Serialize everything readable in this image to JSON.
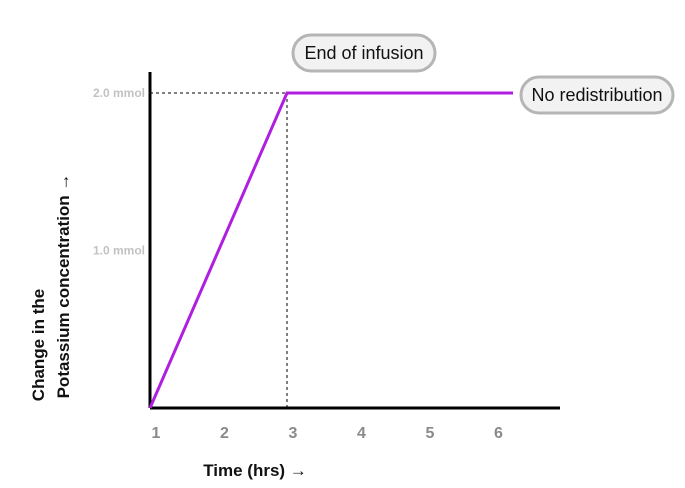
{
  "chart_data": {
    "type": "line",
    "x": [
      1,
      2,
      3,
      4,
      5,
      6
    ],
    "x_ticks": [
      "1",
      "2",
      "3",
      "4",
      "5",
      "6"
    ],
    "y_ticks": [
      {
        "value": 1.0,
        "label": "1.0 mmol"
      },
      {
        "value": 2.0,
        "label": "2.0 mmol"
      }
    ],
    "xlabel": "Time (hrs) →",
    "ylabel_lines": [
      "Change in the",
      "Potassium concentration →"
    ],
    "xlim": [
      1,
      7.1
    ],
    "ylim": [
      0,
      2.0
    ],
    "series": [
      {
        "points": [
          [
            1,
            0
          ],
          [
            3,
            2.0
          ],
          [
            6.3,
            2.0
          ]
        ],
        "color": "#b01ee0"
      }
    ],
    "reference_lines": {
      "x": 3,
      "y": 2.0
    },
    "annotations": [
      {
        "id": "end-of-infusion",
        "text": "End of infusion",
        "x": 3,
        "y": 2.0
      },
      {
        "id": "no-redistribution",
        "text": "No redistribution",
        "x": 6.3,
        "y": 2.0
      }
    ],
    "grid": false
  }
}
